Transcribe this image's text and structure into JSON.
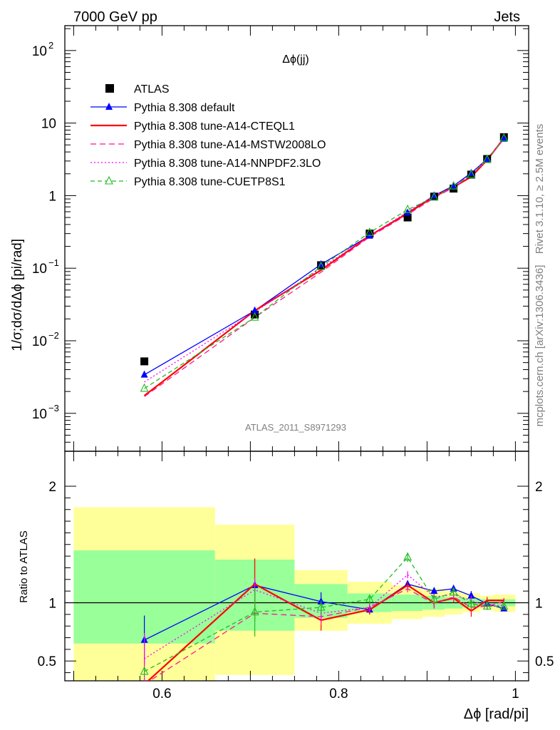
{
  "header": {
    "left": "7000 GeV pp",
    "right": "Jets"
  },
  "side": {
    "rivet": "Rivet 3.1.10, ≥ 2.5M events",
    "mcplots": "mcplots.cern.ch [arXiv:1306.3436]"
  },
  "panel_title": "Δϕ(jj)",
  "analysis_id": "ATLAS_2011_S8971293",
  "colors": {
    "atlas": "#000000",
    "default": "#0000ff",
    "cteql1": "#ff0000",
    "mstw": "#ff1493",
    "nnpdf": "#ff00ff",
    "cuetp8s1": "#22bb22",
    "band_inner": "#99ff99",
    "band_outer": "#ffff99"
  },
  "chart_data": [
    {
      "type": "line",
      "panel": "main",
      "ylabel": "1/σ;dσ/dΔϕ [pi/rad]",
      "yscale": "log",
      "ylim": [
        0.0003,
        220
      ],
      "xlim": [
        0.49,
        1.015
      ],
      "y_ticks": [
        {
          "value": 0.001,
          "base": "10",
          "exp": "−3"
        },
        {
          "value": 0.01,
          "base": "10",
          "exp": "−2"
        },
        {
          "value": 0.1,
          "base": "10",
          "exp": "−1"
        },
        {
          "value": 1,
          "base": "1",
          "exp": ""
        },
        {
          "value": 10,
          "base": "10",
          "exp": ""
        },
        {
          "value": 100,
          "base": "10",
          "exp": "2"
        }
      ],
      "legend_position": "top-left",
      "x": [
        0.58,
        0.705,
        0.78,
        0.835,
        0.878,
        0.908,
        0.93,
        0.95,
        0.968,
        0.987
      ],
      "series": [
        {
          "name": "ATLAS",
          "key": "atlas",
          "marker": "square",
          "values": [
            0.0052,
            0.023,
            0.11,
            0.3,
            0.5,
            0.97,
            1.25,
            1.95,
            3.2,
            6.4
          ]
        },
        {
          "name": "Pythia 8.308 default",
          "key": "default",
          "marker": "triangle",
          "dash": "",
          "values": [
            0.0034,
            0.026,
            0.113,
            0.28,
            0.58,
            1.0,
            1.37,
            2.05,
            3.2,
            6.05
          ]
        },
        {
          "name": "Pythia 8.308 tune-A14-CTEQL1",
          "key": "cteql1",
          "marker": "",
          "dash": "",
          "values": [
            0.00175,
            0.026,
            0.094,
            0.28,
            0.57,
            0.97,
            1.31,
            1.82,
            3.1,
            6.2
          ]
        },
        {
          "name": "Pythia 8.308 tune-A14-MSTW2008LO",
          "key": "mstw",
          "marker": "",
          "dash": "8 5",
          "values": [
            0.0017,
            0.021,
            0.088,
            0.27,
            0.55,
            0.93,
            1.3,
            1.9,
            3.1,
            6.05
          ]
        },
        {
          "name": "Pythia 8.308 tune-A14-NNPDF2.3LO",
          "key": "nnpdf",
          "marker": "",
          "dash": "2 3",
          "values": [
            0.0027,
            0.025,
            0.1,
            0.28,
            0.6,
            1.0,
            1.3,
            2.0,
            3.2,
            6.1
          ]
        },
        {
          "name": "Pythia 8.308 tune-CUETP8S1",
          "key": "cuetp8s1",
          "marker": "open-triangle",
          "dash": "6 4",
          "values": [
            0.0022,
            0.021,
            0.105,
            0.31,
            0.64,
            0.95,
            1.35,
            1.95,
            3.15,
            6.2
          ]
        }
      ]
    },
    {
      "type": "line",
      "panel": "ratio",
      "xlabel": "Δϕ [rad/pi]",
      "ylabel": "Ratio to ATLAS",
      "ylim": [
        0.33,
        2.3
      ],
      "xlim": [
        0.49,
        1.015
      ],
      "x_ticks": [
        "0.6",
        "0.8",
        "1"
      ],
      "x_tick_values": [
        0.6,
        0.8,
        1.0
      ],
      "y_ticks": [
        "0.5",
        "1",
        "2"
      ],
      "y_tick_values": [
        0.5,
        1,
        2
      ],
      "bands": [
        {
          "x0": 0.5,
          "x1": 0.66,
          "inner": [
            0.65,
            1.45
          ],
          "outer": [
            0.3,
            1.82
          ]
        },
        {
          "x0": 0.66,
          "x1": 0.75,
          "inner": [
            0.76,
            1.37
          ],
          "outer": [
            0.38,
            1.67
          ]
        },
        {
          "x0": 0.75,
          "x1": 0.81,
          "inner": [
            0.87,
            1.16
          ],
          "outer": [
            0.76,
            1.28
          ]
        },
        {
          "x0": 0.81,
          "x1": 0.86,
          "inner": [
            0.92,
            1.08
          ],
          "outer": [
            0.82,
            1.18
          ]
        },
        {
          "x0": 0.86,
          "x1": 0.895,
          "inner": [
            0.93,
            1.07
          ],
          "outer": [
            0.86,
            1.15
          ]
        },
        {
          "x0": 0.895,
          "x1": 0.92,
          "inner": [
            0.94,
            1.06
          ],
          "outer": [
            0.88,
            1.12
          ]
        },
        {
          "x0": 0.92,
          "x1": 0.94,
          "inner": [
            0.95,
            1.05
          ],
          "outer": [
            0.9,
            1.1
          ]
        },
        {
          "x0": 0.94,
          "x1": 0.96,
          "inner": [
            0.96,
            1.04
          ],
          "outer": [
            0.92,
            1.08
          ]
        },
        {
          "x0": 0.96,
          "x1": 0.975,
          "inner": [
            0.97,
            1.03
          ],
          "outer": [
            0.94,
            1.06
          ]
        },
        {
          "x0": 0.975,
          "x1": 1.0,
          "inner": [
            0.97,
            1.03
          ],
          "outer": [
            0.92,
            1.07
          ]
        }
      ],
      "series": [
        {
          "key": "default",
          "values": [
            0.68,
            1.15,
            1.01,
            0.94,
            1.16,
            1.1,
            1.12,
            1.06,
            0.99,
            0.95
          ],
          "err": [
            0.21,
            0.05,
            0.08,
            0.04,
            0.03,
            0.03,
            0.03,
            0.04,
            0.03,
            0.02
          ]
        },
        {
          "key": "cteql1",
          "values": [
            0.3,
            1.16,
            0.85,
            0.94,
            1.15,
            1.0,
            1.04,
            0.93,
            1.02,
            1.02
          ],
          "err": [
            0.0,
            0.22,
            0.09,
            0.04,
            0.03,
            0.04,
            0.04,
            0.05,
            0.03,
            0.02
          ]
        },
        {
          "key": "mstw",
          "values": [
            0.3,
            0.91,
            0.88,
            0.96,
            1.12,
            0.99,
            1.05,
            0.96,
            0.97,
            1.01
          ],
          "err": [
            0.0,
            0.07,
            0.07,
            0.04,
            0.03,
            0.04,
            0.04,
            0.04,
            0.03,
            0.02
          ]
        },
        {
          "key": "nnpdf",
          "values": [
            0.52,
            1.11,
            0.91,
            0.96,
            1.24,
            1.05,
            1.07,
            1.02,
            0.97,
            0.98
          ],
          "err": [
            0.22,
            0.1,
            0.06,
            0.04,
            0.03,
            0.03,
            0.03,
            0.04,
            0.03,
            0.02
          ]
        },
        {
          "key": "cuetp8s1",
          "values": [
            0.41,
            0.92,
            0.96,
            1.03,
            1.39,
            1.03,
            1.09,
            0.99,
            0.97,
            0.97
          ],
          "err": [
            0.04,
            0.21,
            0.06,
            0.04,
            0.04,
            0.04,
            0.03,
            0.04,
            0.03,
            0.02
          ]
        }
      ]
    }
  ]
}
